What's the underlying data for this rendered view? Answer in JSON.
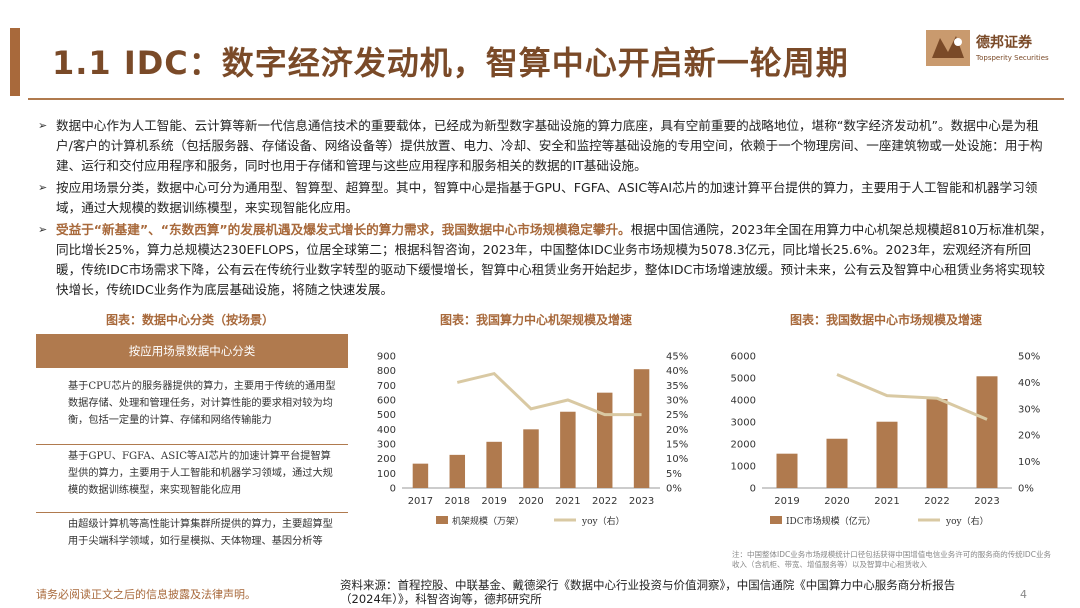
{
  "header": {
    "title": "1.1 IDC：数字经济发动机，智算中心开启新一轮周期",
    "logo_cn": "德邦证券",
    "logo_en": "Topsperity Securities"
  },
  "bullets": [
    {
      "text": "数据中心作为人工智能、云计算等新一代信息通信技术的重要载体，已经成为新型数字基础设施的算力底座，具有空前重要的战略地位，堪称“数字经济发动机”。数据中心是为租户/客户的计算机系统（包括服务器、存储设备、网络设备等）提供放置、电力、冷却、安全和监控等基础设施的专用空间，依赖于一个物理房间、一座建筑物或一处设施：用于构建、运行和交付应用程序和服务，同时也用于存储和管理与这些应用程序和服务相关的数据的IT基础设施。"
    },
    {
      "text": "按应用场景分类，数据中心可分为通用型、智算型、超算型。其中，智算中心是指基于GPU、FGFA、ASIC等AI芯片的加速计算平台提供的算力，主要用于人工智能和机器学习领域，通过大规模的数据训练模型，来实现智能化应用。"
    },
    {
      "highlight": "受益于“新基建”、“东数西算”的发展机遇及爆发式增长的算力需求，我国数据中心市场规模稳定攀升。",
      "text": "根据中国信通院，2023年全国在用算力中心机架总规模超810万标准机架，同比增长25%，算力总规模达230EFLOPS，位居全球第二；根据科智咨询，2023年，中国整体IDC业务市场规模为5078.3亿元，同比增长25.6%。2023年，宏观经济有所回暖，传统IDC市场需求下降，公有云在传统行业数字转型的驱动下缓慢增长，智算中心租赁业务开始起步，整体IDC市场增速放缓。预计未来，公有云及智算中心租赁业务将实现较快增长，传统IDC业务作为底层基础设施，将随之快速发展。"
    }
  ],
  "figures": {
    "fig1_title": "图表：数据中心分类（按场景）",
    "fig2_title": "图表：我国算力中心机架规模及增速",
    "fig3_title": "图表：我国数据中心市场规模及增速"
  },
  "table": {
    "header": "按应用场景数据中心分类",
    "rows": [
      "基于CPU芯片的服务器提供的算力，主要用于传统的通用型数据存储、处理和管理任务，对计算性能的要求相对较为均衡，包括一定量的计算、存储和网络传输能力",
      "基于GPU、FGFA、ASIC等AI芯片的加速计算平台提智算型供的算力，主要用于人工智能和机器学习领域，通过大规模的数据训练模型，来实现智能化应用",
      "由超级计算机等高性能计算集群所提供的算力，主要超算型用于尖端科学领域，如行星模拟、天体物理、基因分析等"
    ]
  },
  "chart_data": [
    {
      "type": "bar",
      "title": "我国算力中心机架规模及增速",
      "categories": [
        "2017",
        "2018",
        "2019",
        "2020",
        "2021",
        "2022",
        "2023"
      ],
      "series": [
        {
          "name": "机架规模（万架）",
          "type": "bar",
          "axis": "left",
          "values": [
            166,
            226,
            315,
            400,
            520,
            650,
            810
          ]
        },
        {
          "name": "yoy（右）",
          "type": "line",
          "axis": "right",
          "values": [
            null,
            36,
            39,
            27,
            30,
            25,
            25
          ]
        }
      ],
      "ylim_left": [
        0,
        900
      ],
      "yticks_left": [
        "0",
        "100",
        "200",
        "300",
        "400",
        "500",
        "600",
        "700",
        "800",
        "900"
      ],
      "ylim_right": [
        0,
        45
      ],
      "yticks_right": [
        "0%",
        "5%",
        "10%",
        "15%",
        "20%",
        "25%",
        "30%",
        "35%",
        "40%",
        "45%"
      ],
      "colors": {
        "bar": "#b07a4e",
        "line": "#d9c9a3"
      },
      "legend": [
        "机架规模（万架）",
        "yoy（右）"
      ]
    },
    {
      "type": "bar",
      "title": "我国数据中心市场规模及增速",
      "categories": [
        "2019",
        "2020",
        "2021",
        "2022",
        "2023"
      ],
      "series": [
        {
          "name": "IDC市场规模（亿元）",
          "type": "bar",
          "axis": "left",
          "values": [
            1560,
            2239,
            3013,
            4043,
            5078
          ]
        },
        {
          "name": "yoy（右）",
          "type": "line",
          "axis": "right",
          "values": [
            null,
            43,
            35,
            34,
            26
          ]
        }
      ],
      "ylim_left": [
        0,
        6000
      ],
      "yticks_left": [
        "0",
        "1000",
        "2000",
        "3000",
        "4000",
        "5000",
        "6000"
      ],
      "ylim_right": [
        0,
        50
      ],
      "yticks_right": [
        "0%",
        "10%",
        "20%",
        "30%",
        "40%",
        "50%"
      ],
      "colors": {
        "bar": "#b07a4e",
        "line": "#d9c9a3"
      },
      "legend": [
        "IDC市场规模（亿元）",
        "yoy（右）"
      ]
    }
  ],
  "footer": {
    "source": "资料来源：首程控股、中联基金、戴德梁行《数据中心行业投资与价值洞察》，中国信通院《中国算力中心服务商分析报告（2024年）》，科智咨询等，德邦研究所",
    "disclaimer": "请务必阅读正文之后的信息披露及法律声明。",
    "page": "4",
    "note": "注：中国整体IDC业务市场规模统计口径包括获得中国增值电信业务许可的服务商的传统IDC业务收入（含机柜、带宽、增值服务等）以及智算中心租赁收入"
  }
}
